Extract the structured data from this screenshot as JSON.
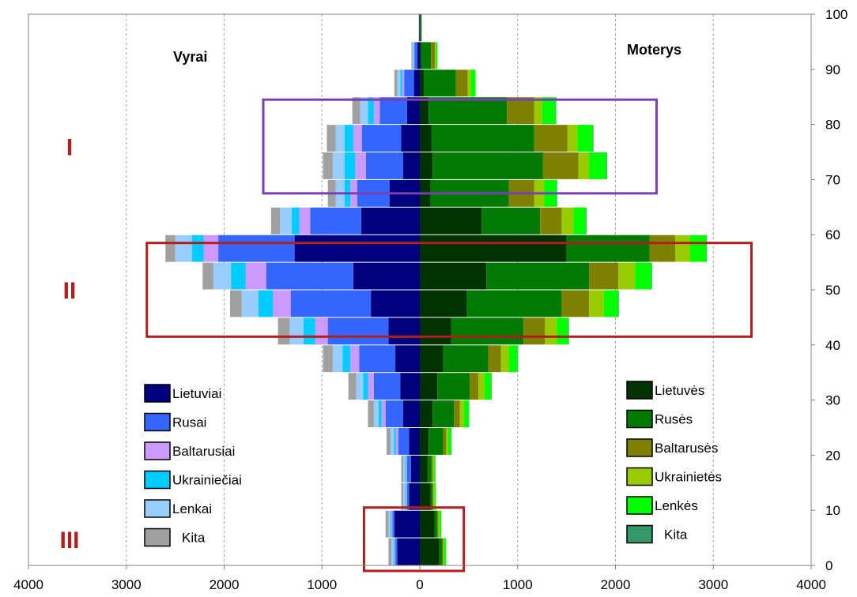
{
  "chart_data": {
    "type": "bar",
    "orientation": "horizontal-population-pyramid",
    "left_label": "Vyrai",
    "right_label": "Moterys",
    "x_ticks": [
      "4000",
      "3000",
      "2000",
      "1000",
      "0",
      "1000",
      "2000",
      "3000",
      "4000"
    ],
    "y_ticks": [
      "0",
      "10",
      "20",
      "30",
      "40",
      "50",
      "60",
      "70",
      "80",
      "90",
      "100"
    ],
    "xlim": [
      -4000,
      4000
    ],
    "ylim": [
      0,
      100
    ],
    "grid": "vertical dashed",
    "age_groups": [
      {
        "label": "0",
        "y": 0
      },
      {
        "label": "5",
        "y": 5
      },
      {
        "label": "10",
        "y": 10
      },
      {
        "label": "15",
        "y": 15
      },
      {
        "label": "20",
        "y": 20
      },
      {
        "label": "25",
        "y": 25
      },
      {
        "label": "30",
        "y": 30
      },
      {
        "label": "35",
        "y": 35
      },
      {
        "label": "40",
        "y": 40
      },
      {
        "label": "45",
        "y": 45
      },
      {
        "label": "50",
        "y": 50
      },
      {
        "label": "55",
        "y": 55
      },
      {
        "label": "60",
        "y": 60
      },
      {
        "label": "65",
        "y": 65
      },
      {
        "label": "70",
        "y": 70
      },
      {
        "label": "75",
        "y": 75
      },
      {
        "label": "80",
        "y": 80
      },
      {
        "label": "85",
        "y": 85
      },
      {
        "label": "90",
        "y": 90
      },
      {
        "label": "95",
        "y": 95
      }
    ],
    "series_men": [
      {
        "name": "Lietuviai",
        "color": "#00007f",
        "values": [
          230,
          260,
          110,
          90,
          110,
          170,
          200,
          250,
          320,
          500,
          680,
          1280,
          600,
          310,
          170,
          190,
          130,
          60,
          25,
          5
        ]
      },
      {
        "name": "Rusai",
        "color": "#3366ff",
        "values": [
          20,
          20,
          20,
          40,
          110,
          180,
          270,
          370,
          620,
          820,
          890,
          780,
          520,
          330,
          380,
          400,
          280,
          100,
          30,
          5
        ]
      },
      {
        "name": "Baltarusiai",
        "color": "#cc99ff",
        "values": [
          10,
          10,
          10,
          10,
          25,
          40,
          60,
          90,
          130,
          180,
          210,
          150,
          110,
          70,
          110,
          90,
          60,
          20,
          5,
          0
        ]
      },
      {
        "name": "Ukrainiečiai",
        "color": "#00ccff",
        "values": [
          10,
          10,
          10,
          10,
          20,
          30,
          50,
          80,
          120,
          150,
          150,
          120,
          80,
          60,
          110,
          90,
          60,
          20,
          5,
          0
        ]
      },
      {
        "name": "Lenkai",
        "color": "#99ccff",
        "values": [
          20,
          20,
          20,
          20,
          35,
          50,
          70,
          100,
          140,
          170,
          180,
          170,
          120,
          90,
          120,
          90,
          80,
          30,
          10,
          0
        ]
      },
      {
        "name": "Kita",
        "color": "#a0a0a0",
        "values": [
          30,
          30,
          20,
          20,
          40,
          60,
          80,
          100,
          120,
          120,
          110,
          100,
          90,
          80,
          100,
          90,
          80,
          30,
          10,
          0
        ]
      }
    ],
    "series_women": [
      {
        "name": "Lietuvės",
        "color": "#003300",
        "values": [
          200,
          150,
          110,
          80,
          90,
          130,
          180,
          240,
          320,
          480,
          680,
          1500,
          630,
          110,
          130,
          120,
          90,
          40,
          15,
          5
        ]
      },
      {
        "name": "Rusės",
        "color": "#007a00",
        "values": [
          30,
          30,
          20,
          40,
          150,
          220,
          330,
          460,
          740,
          970,
          1050,
          850,
          600,
          800,
          1130,
          1050,
          800,
          330,
          100,
          10
        ]
      },
      {
        "name": "Baltarusės",
        "color": "#808000",
        "values": [
          10,
          10,
          10,
          15,
          30,
          60,
          90,
          130,
          220,
          280,
          300,
          260,
          220,
          260,
          360,
          340,
          280,
          120,
          40,
          5
        ]
      },
      {
        "name": "Ukrainietės",
        "color": "#99cc00",
        "values": [
          10,
          10,
          10,
          10,
          20,
          40,
          60,
          80,
          120,
          150,
          170,
          150,
          120,
          100,
          110,
          100,
          80,
          30,
          10,
          0
        ]
      },
      {
        "name": "Lenkės",
        "color": "#00ff00",
        "values": [
          20,
          20,
          15,
          15,
          30,
          50,
          70,
          90,
          120,
          150,
          170,
          170,
          130,
          130,
          180,
          160,
          140,
          50,
          15,
          0
        ]
      },
      {
        "name": "Kita",
        "color": "#339966",
        "values": [
          0,
          0,
          0,
          0,
          5,
          5,
          5,
          5,
          5,
          5,
          5,
          5,
          5,
          5,
          5,
          5,
          5,
          0,
          0,
          0
        ]
      }
    ],
    "highlights": [
      {
        "label": "I",
        "age_from": 67.5,
        "age_to": 84.5,
        "x_from": -1600,
        "x_to": 2420,
        "color": "#7b3fb5"
      },
      {
        "label": "II",
        "age_from": 41.5,
        "age_to": 58.5,
        "x_from": -2790,
        "x_to": 3390,
        "color": "#b01e1e"
      },
      {
        "label": "III",
        "age_from": -1,
        "age_to": 10.5,
        "x_from": -570,
        "x_to": 450,
        "color": "#b01e1e"
      }
    ]
  }
}
